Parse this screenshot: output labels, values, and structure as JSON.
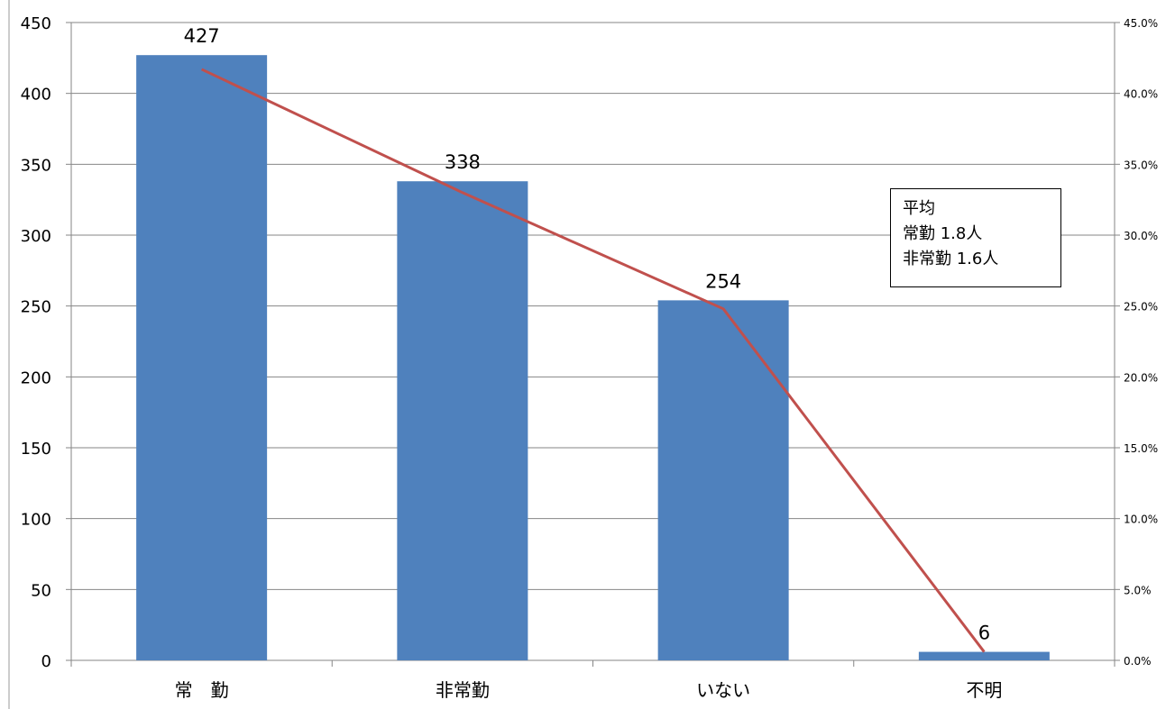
{
  "chart_data": {
    "type": "bar",
    "categories": [
      "常　勤",
      "非常勤",
      "いない",
      "不明"
    ],
    "series": [
      {
        "type": "bar",
        "values": [
          427,
          338,
          254,
          6
        ],
        "color": "#4F81BD"
      },
      {
        "type": "line",
        "axis": "right",
        "values": [
          0.417,
          0.33,
          0.248,
          0.006
        ],
        "color": "#C0504D"
      }
    ],
    "data_labels": [
      "427",
      "338",
      "254",
      "6"
    ],
    "ylim": [
      0,
      450
    ],
    "yticks": [
      "0",
      "50",
      "100",
      "150",
      "200",
      "250",
      "300",
      "350",
      "400",
      "450"
    ],
    "y2lim": [
      0,
      0.45
    ],
    "y2ticks": [
      "0.0%",
      "5.0%",
      "10.0%",
      "15.0%",
      "20.0%",
      "25.0%",
      "30.0%",
      "35.0%",
      "40.0%",
      "45.0%"
    ],
    "grid": true
  },
  "note": {
    "line1": "平均",
    "line2": "常勤  1.8人",
    "line3": "非常勤  1.6人"
  }
}
